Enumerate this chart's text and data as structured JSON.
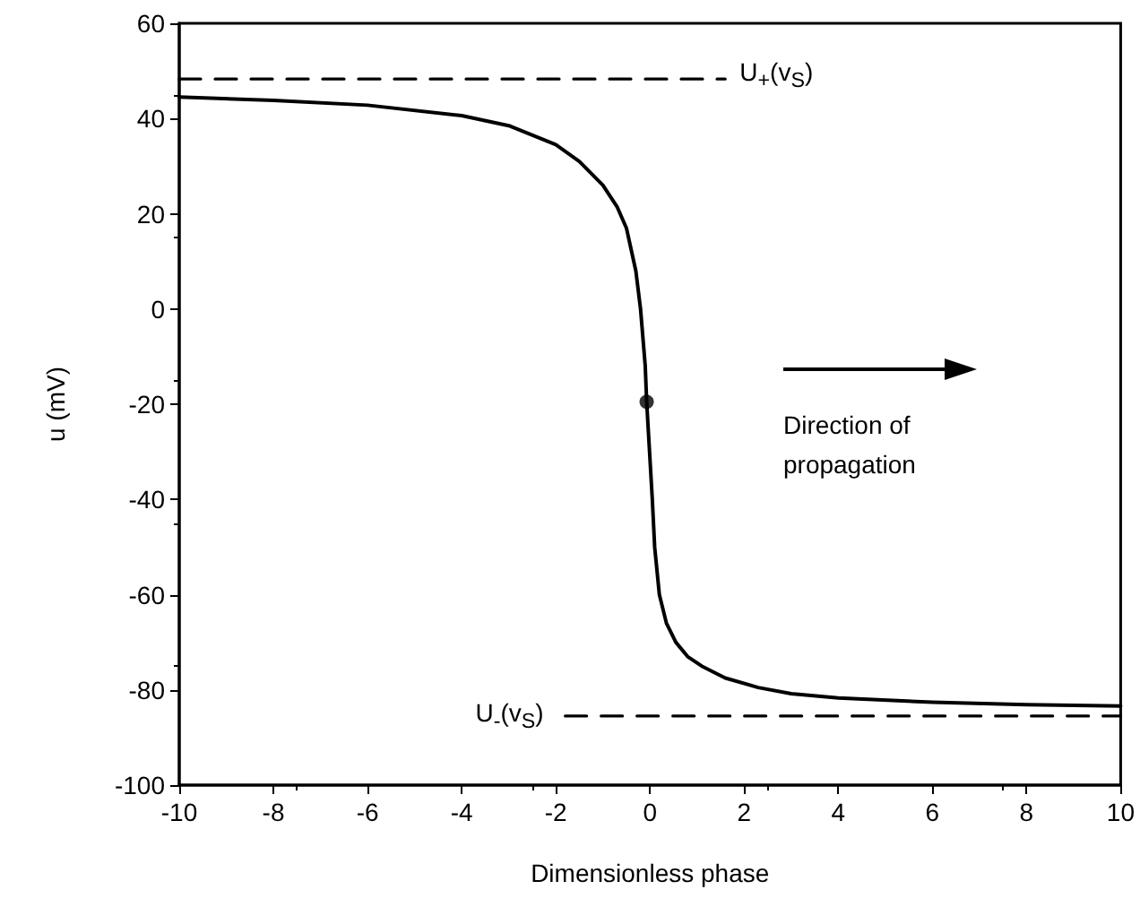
{
  "chart_data": {
    "type": "line",
    "xlabel": "Dimensionless phase",
    "ylabel": "u (mV)",
    "xlim": [
      -10,
      10
    ],
    "xticks": [
      -10,
      -8,
      -6,
      -4,
      -2,
      0,
      2,
      4,
      6,
      8,
      10
    ],
    "ylim": [
      -100,
      60
    ],
    "yticks": [
      -100,
      -80,
      -60,
      -40,
      -20,
      0,
      20,
      40,
      60
    ],
    "grid": false,
    "marker": "none",
    "series": [
      {
        "color": "#000000",
        "line_style": "solid",
        "x": [
          -10,
          -8,
          -6,
          -4,
          -3,
          -2,
          -1.5,
          -1,
          -0.7,
          -0.5,
          -0.3,
          -0.2,
          -0.1,
          -0.07,
          0.05,
          0.1,
          0.2,
          0.35,
          0.55,
          0.8,
          1.1,
          1.6,
          2.3,
          3,
          4,
          6,
          8,
          10
        ],
        "values": [
          44.5,
          43.8,
          42.8,
          40.6,
          38.5,
          34.5,
          31,
          26,
          21.5,
          17,
          8,
          0,
          -12,
          -19.5,
          -40,
          -50,
          -60,
          -66,
          -70,
          -73,
          -75,
          -77.5,
          -79.5,
          -80.8,
          -81.7,
          -82.6,
          -83.1,
          -83.4
        ]
      },
      {
        "type": "scatter",
        "marker": "circle",
        "color": "#000000",
        "x": [
          -0.07
        ],
        "values": [
          -19.5
        ]
      },
      {
        "color": "#000000",
        "line_style": "dashed",
        "x": [
          -10,
          1.6
        ],
        "values": [
          48.3,
          48.3
        ]
      },
      {
        "color": "#000000",
        "line_style": "dashed",
        "x": [
          -1.8,
          10
        ],
        "values": [
          -85.5,
          -85.5
        ]
      }
    ],
    "annotations": [
      {
        "text": "U$_{+}$(v$_{S}$)",
        "x": 1.6,
        "y": 48.3
      },
      {
        "text": "U$_{-}$(v$_{S}$)",
        "x": -1.8,
        "y": -85.5
      },
      "Direction of propagation"
    ]
  }
}
